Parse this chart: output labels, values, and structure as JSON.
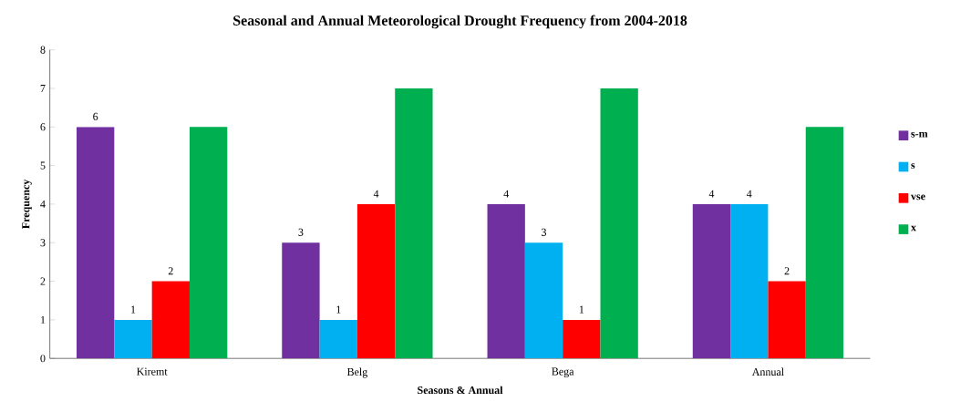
{
  "chart_data": {
    "type": "bar",
    "title": "Seasonal and Annual Meteorological Drought Frequency from 2004-2018",
    "xlabel": "Seasons & Annual",
    "ylabel": "Frequency",
    "categories": [
      "Kiremt",
      "Belg",
      "Bega",
      "Annual"
    ],
    "series": [
      {
        "name": "s-m",
        "color": "#7030a0",
        "values": [
          6,
          3,
          4,
          4
        ],
        "value_labels": [
          "6",
          "3",
          "4",
          "4"
        ]
      },
      {
        "name": "s",
        "color": "#00b0f0",
        "values": [
          1,
          1,
          3,
          4
        ],
        "value_labels": [
          "1",
          "1",
          "3",
          "4"
        ]
      },
      {
        "name": "vse",
        "color": "#ff0000",
        "values": [
          2,
          4,
          1,
          2
        ],
        "value_labels": [
          "2",
          "4",
          "1",
          "2"
        ]
      },
      {
        "name": "x",
        "color": "#00b050",
        "values": [
          6,
          7,
          7,
          6
        ],
        "value_labels": [
          null,
          null,
          null,
          null
        ]
      }
    ],
    "ylim": [
      0,
      8
    ],
    "yticks": [
      0,
      1,
      2,
      3,
      4,
      5,
      6,
      7,
      8
    ],
    "legend": "right"
  }
}
